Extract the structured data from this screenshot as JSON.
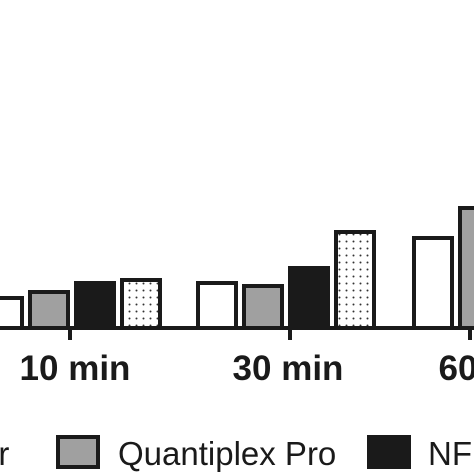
{
  "chart_data": {
    "type": "bar",
    "categories": [
      "10 min",
      "30 min",
      "60"
    ],
    "series": [
      {
        "name": "er",
        "values": [
          0.1,
          0.15,
          0.3
        ],
        "fill": "#ffffff",
        "pattern": "none"
      },
      {
        "name": "Quantiplex Pro",
        "values": [
          0.12,
          0.14,
          0.4
        ],
        "fill": "#a0a0a0",
        "pattern": "none"
      },
      {
        "name": "NF",
        "values": [
          0.15,
          0.2,
          null
        ],
        "fill": "#1a1a1a",
        "pattern": "none"
      },
      {
        "name": "",
        "values": [
          0.16,
          0.32,
          null
        ],
        "fill": "#ffffff",
        "pattern": "dots"
      }
    ],
    "ylim": [
      0,
      1
    ],
    "grid": false,
    "legend_position": "bottom"
  }
}
